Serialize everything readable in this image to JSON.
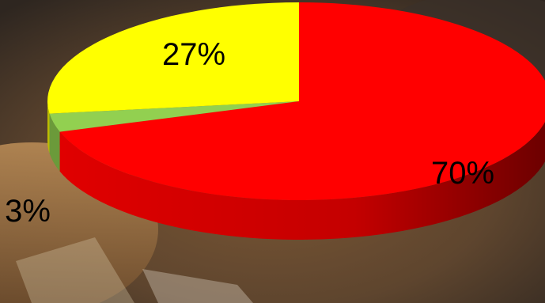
{
  "chart_data": {
    "type": "pie",
    "style": "3d",
    "slices": [
      {
        "label": "70%",
        "value": 70,
        "color": "#ff0000",
        "side_color": "#c00000"
      },
      {
        "label": "3%",
        "value": 3,
        "color": "#92d050",
        "side_color": "#6b9a3a"
      },
      {
        "label": "27%",
        "value": 27,
        "color": "#ffff00",
        "side_color": "#bcbc00"
      }
    ],
    "title": "",
    "legend": "none"
  }
}
